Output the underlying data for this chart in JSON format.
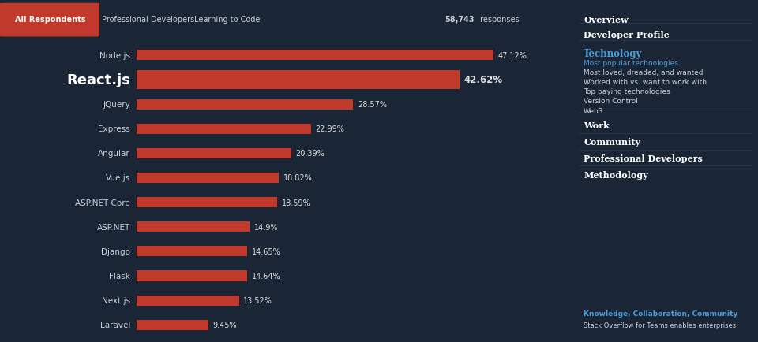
{
  "categories": [
    "Node.js",
    "React.js",
    "jQuery",
    "Express",
    "Angular",
    "Vue.js",
    "ASP.NET Core",
    "ASP.NET",
    "Django",
    "Flask",
    "Next.js",
    "Laravel"
  ],
  "values": [
    47.12,
    42.62,
    28.57,
    22.99,
    20.39,
    18.82,
    18.59,
    14.9,
    14.65,
    14.64,
    13.52,
    9.45
  ],
  "labels": [
    "47.12%",
    "42.62%",
    "28.57%",
    "22.99%",
    "20.39%",
    "18.82%",
    "18.59%",
    "14.9%",
    "14.65%",
    "14.64%",
    "13.52%",
    "9.45%"
  ],
  "highlight_index": 1,
  "bg_color": "#1a2535",
  "right_bg_color": "#14202e",
  "bar_color": "#c0392b",
  "text_color": "#c8d0da",
  "white": "#ffffff",
  "bar_label_color": "#dddddd",
  "tab_active_text": "All Respondents",
  "tab_active_bg": "#c0392b",
  "tab_inactive": [
    "Professional Developers",
    "Learning to Code"
  ],
  "responses_text": "58,743 responses",
  "accent_color": "#4a9eda",
  "divider_color": "#2a3d52",
  "right_panel_footer": "Knowledge, Collaboration, Community",
  "right_panel_footer_sub": "Stack Overflow for Teams enables enterprises"
}
